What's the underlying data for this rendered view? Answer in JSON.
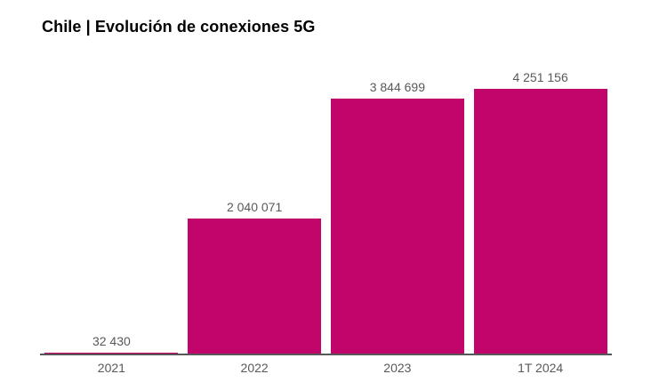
{
  "chart_data": {
    "type": "bar",
    "title": "Chile | Evolución de conexiones 5G",
    "categories": [
      "2021",
      "2022",
      "2023",
      "1T 2024"
    ],
    "values": [
      32430,
      2040071,
      3844699,
      4251156
    ],
    "value_labels": [
      "32 430",
      "2 040 071",
      "3 844 699",
      "4 251 156"
    ],
    "xlabel": "",
    "ylabel": "",
    "ylim": [
      0,
      4251156
    ],
    "grid": false,
    "legend": false,
    "bar_color": "#c2056b",
    "label_color": "#58595b",
    "axis_color": "#57575a",
    "title_color": "#000000",
    "background_color": "#ffffff"
  }
}
